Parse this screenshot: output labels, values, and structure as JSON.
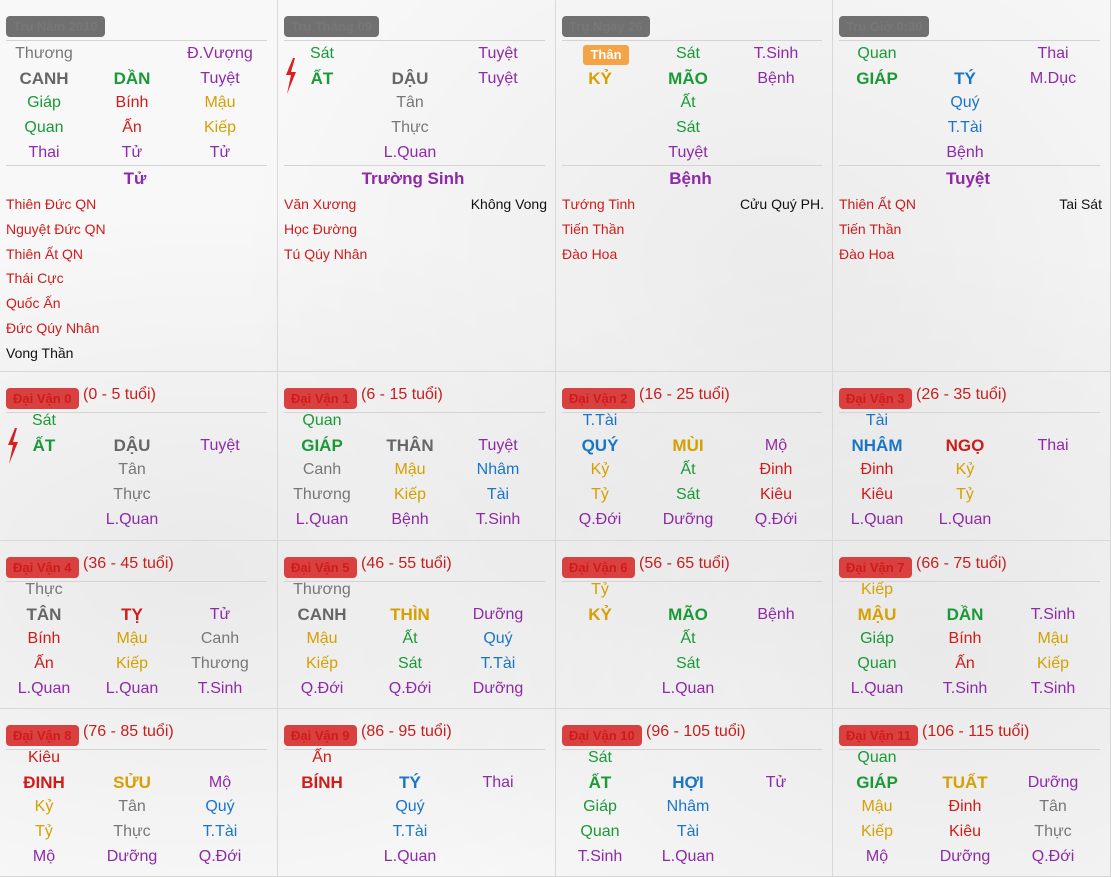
{
  "pillars": [
    {
      "title": "Trụ Năm 2010",
      "rows": [
        [
          [
            "Thương",
            "gray"
          ],
          null,
          [
            "Đ.Vượng",
            "purple"
          ]
        ],
        [
          [
            "CANH",
            "darkgray",
            1
          ],
          [
            "DẦN",
            "green",
            1
          ],
          [
            "Tuyệt",
            "purple"
          ]
        ],
        [
          [
            "Giáp",
            "green"
          ],
          [
            "Bính",
            "red"
          ],
          [
            "Mậu",
            "gold"
          ]
        ],
        [
          [
            "Quan",
            "green"
          ],
          [
            "Ấn",
            "red"
          ],
          [
            "Kiếp",
            "gold"
          ]
        ],
        [
          [
            "Thai",
            "purple"
          ],
          [
            "Tử",
            "purple"
          ],
          [
            "Tử",
            "purple"
          ]
        ]
      ],
      "center": "Tử",
      "stars_left": [
        [
          "Thiên Đức QN",
          "red"
        ],
        [
          "Nguyệt Đức QN",
          "red"
        ],
        [
          "Thiên Ất QN",
          "red"
        ],
        [
          "Thái Cực",
          "red"
        ],
        [
          "Quốc Ấn",
          "red"
        ],
        [
          "Đức Qúy Nhân",
          "red"
        ],
        [
          "Vong Thần",
          "black"
        ]
      ],
      "stars_right": []
    },
    {
      "title": "Trụ Tháng 09",
      "bolt": true,
      "rows": [
        [
          [
            "Sát",
            "green"
          ],
          null,
          [
            "Tuyệt",
            "purple"
          ]
        ],
        [
          [
            "ẤT",
            "green",
            1
          ],
          [
            "DẬU",
            "darkgray",
            1
          ],
          [
            "Tuyệt",
            "purple"
          ]
        ],
        [
          null,
          [
            "Tân",
            "gray"
          ],
          null
        ],
        [
          null,
          [
            "Thực",
            "gray"
          ],
          null
        ],
        [
          null,
          [
            "L.Quan",
            "purple"
          ],
          null
        ]
      ],
      "center": "Trường Sinh",
      "stars_left": [
        [
          "Văn Xương",
          "red"
        ],
        [
          "Học Đường",
          "red"
        ],
        [
          "Tú Qúy Nhân",
          "red"
        ]
      ],
      "stars_right": [
        [
          "Không Vong",
          "black"
        ]
      ]
    },
    {
      "title": "Trụ Ngày 26",
      "hl": "Thân",
      "rows": [
        [
          null,
          [
            "Sát",
            "green"
          ],
          [
            "T.Sinh",
            "purple"
          ]
        ],
        [
          [
            "KỶ",
            "gold",
            1
          ],
          [
            "MÃO",
            "green",
            1
          ],
          [
            "Bệnh",
            "purple"
          ]
        ],
        [
          null,
          [
            "Ất",
            "green"
          ],
          null
        ],
        [
          null,
          [
            "Sát",
            "green"
          ],
          null
        ],
        [
          null,
          [
            "Tuyệt",
            "purple"
          ],
          null
        ]
      ],
      "center": "Bệnh",
      "stars_left": [
        [
          "Tướng Tinh",
          "red"
        ],
        [
          "Tiến Thần",
          "red"
        ],
        [
          "Đào Hoa",
          "red"
        ]
      ],
      "stars_right": [
        [
          "Cửu Quý PH.",
          "black"
        ]
      ]
    },
    {
      "title": "Trụ Giờ  0:30",
      "rows": [
        [
          [
            "Quan",
            "green"
          ],
          null,
          [
            "Thai",
            "purple"
          ]
        ],
        [
          [
            "GIÁP",
            "green",
            1
          ],
          [
            "TÝ",
            "blue",
            1
          ],
          [
            "M.Dục",
            "purple"
          ]
        ],
        [
          null,
          [
            "Quý",
            "blue"
          ],
          null
        ],
        [
          null,
          [
            "T.Tài",
            "blue"
          ],
          null
        ],
        [
          null,
          [
            "Bệnh",
            "purple"
          ],
          null
        ]
      ],
      "center": "Tuyệt",
      "stars_left": [
        [
          "Thiên Ất QN",
          "red"
        ],
        [
          "Tiến Thần",
          "red"
        ],
        [
          "Đào Hoa",
          "red"
        ]
      ],
      "stars_right": [
        [
          "Tai Sát",
          "black"
        ]
      ]
    }
  ],
  "dai_van": [
    {
      "title": "Đại Vận 0",
      "age": "(0 - 5 tuổi)",
      "bolt": true,
      "rows": [
        [
          [
            "Sát",
            "green"
          ],
          null,
          null
        ],
        [
          [
            "ẤT",
            "green",
            1
          ],
          [
            "DẬU",
            "darkgray",
            1
          ],
          [
            "Tuyệt",
            "purple"
          ]
        ],
        [
          null,
          [
            "Tân",
            "gray"
          ],
          null
        ],
        [
          null,
          [
            "Thực",
            "gray"
          ],
          null
        ],
        [
          null,
          [
            "L.Quan",
            "purple"
          ],
          null
        ]
      ]
    },
    {
      "title": "Đại Vận 1",
      "age": "(6 - 15 tuổi)",
      "rows": [
        [
          [
            "Quan",
            "green"
          ],
          null,
          null
        ],
        [
          [
            "GIÁP",
            "green",
            1
          ],
          [
            "THÂN",
            "darkgray",
            1
          ],
          [
            "Tuyệt",
            "purple"
          ]
        ],
        [
          [
            "Canh",
            "gray"
          ],
          [
            "Mậu",
            "gold"
          ],
          [
            "Nhâm",
            "blue"
          ]
        ],
        [
          [
            "Thương",
            "gray"
          ],
          [
            "Kiếp",
            "gold"
          ],
          [
            "Tài",
            "blue"
          ]
        ],
        [
          [
            "L.Quan",
            "purple"
          ],
          [
            "Bệnh",
            "purple"
          ],
          [
            "T.Sinh",
            "purple"
          ]
        ]
      ]
    },
    {
      "title": "Đại Vận 2",
      "age": "(16 - 25 tuổi)",
      "rows": [
        [
          [
            "T.Tài",
            "blue"
          ],
          null,
          null
        ],
        [
          [
            "QUÝ",
            "blue",
            1
          ],
          [
            "MÙI",
            "gold",
            1
          ],
          [
            "Mộ",
            "purple"
          ]
        ],
        [
          [
            "Kỷ",
            "gold"
          ],
          [
            "Ất",
            "green"
          ],
          [
            "Đinh",
            "red"
          ]
        ],
        [
          [
            "Tỷ",
            "gold"
          ],
          [
            "Sát",
            "green"
          ],
          [
            "Kiêu",
            "red"
          ]
        ],
        [
          [
            "Q.Đới",
            "purple"
          ],
          [
            "Dưỡng",
            "purple"
          ],
          [
            "Q.Đới",
            "purple"
          ]
        ]
      ]
    },
    {
      "title": "Đại Vận 3",
      "age": "(26 - 35 tuổi)",
      "rows": [
        [
          [
            "Tài",
            "blue"
          ],
          null,
          null
        ],
        [
          [
            "NHÂM",
            "blue",
            1
          ],
          [
            "NGỌ",
            "red",
            1
          ],
          [
            "Thai",
            "purple"
          ]
        ],
        [
          [
            "Đinh",
            "red"
          ],
          [
            "Kỷ",
            "gold"
          ],
          null
        ],
        [
          [
            "Kiêu",
            "red"
          ],
          [
            "Tỷ",
            "gold"
          ],
          null
        ],
        [
          [
            "L.Quan",
            "purple"
          ],
          [
            "L.Quan",
            "purple"
          ],
          null
        ]
      ]
    },
    {
      "title": "Đại Vận 4",
      "age": "(36 - 45 tuổi)",
      "rows": [
        [
          [
            "Thực",
            "gray"
          ],
          null,
          null
        ],
        [
          [
            "TÂN",
            "darkgray",
            1
          ],
          [
            "TỴ",
            "red",
            1
          ],
          [
            "Tử",
            "purple"
          ]
        ],
        [
          [
            "Bính",
            "red"
          ],
          [
            "Mậu",
            "gold"
          ],
          [
            "Canh",
            "gray"
          ]
        ],
        [
          [
            "Ấn",
            "red"
          ],
          [
            "Kiếp",
            "gold"
          ],
          [
            "Thương",
            "gray"
          ]
        ],
        [
          [
            "L.Quan",
            "purple"
          ],
          [
            "L.Quan",
            "purple"
          ],
          [
            "T.Sinh",
            "purple"
          ]
        ]
      ]
    },
    {
      "title": "Đại Vận 5",
      "age": "(46 - 55 tuổi)",
      "rows": [
        [
          [
            "Thương",
            "gray"
          ],
          null,
          null
        ],
        [
          [
            "CANH",
            "darkgray",
            1
          ],
          [
            "THÌN",
            "gold",
            1
          ],
          [
            "Dưỡng",
            "purple"
          ]
        ],
        [
          [
            "Mậu",
            "gold"
          ],
          [
            "Ất",
            "green"
          ],
          [
            "Quý",
            "blue"
          ]
        ],
        [
          [
            "Kiếp",
            "gold"
          ],
          [
            "Sát",
            "green"
          ],
          [
            "T.Tài",
            "blue"
          ]
        ],
        [
          [
            "Q.Đới",
            "purple"
          ],
          [
            "Q.Đới",
            "purple"
          ],
          [
            "Dưỡng",
            "purple"
          ]
        ]
      ]
    },
    {
      "title": "Đại Vận 6",
      "age": "(56 - 65 tuổi)",
      "rows": [
        [
          [
            "Tỷ",
            "gold"
          ],
          null,
          null
        ],
        [
          [
            "KỶ",
            "gold",
            1
          ],
          [
            "MÃO",
            "green",
            1
          ],
          [
            "Bệnh",
            "purple"
          ]
        ],
        [
          null,
          [
            "Ất",
            "green"
          ],
          null
        ],
        [
          null,
          [
            "Sát",
            "green"
          ],
          null
        ],
        [
          null,
          [
            "L.Quan",
            "purple"
          ],
          null
        ]
      ]
    },
    {
      "title": "Đại Vận 7",
      "age": "(66 - 75 tuổi)",
      "rows": [
        [
          [
            "Kiếp",
            "gold"
          ],
          null,
          null
        ],
        [
          [
            "MẬU",
            "gold",
            1
          ],
          [
            "DẦN",
            "green",
            1
          ],
          [
            "T.Sinh",
            "purple"
          ]
        ],
        [
          [
            "Giáp",
            "green"
          ],
          [
            "Bính",
            "red"
          ],
          [
            "Mậu",
            "gold"
          ]
        ],
        [
          [
            "Quan",
            "green"
          ],
          [
            "Ấn",
            "red"
          ],
          [
            "Kiếp",
            "gold"
          ]
        ],
        [
          [
            "L.Quan",
            "purple"
          ],
          [
            "T.Sinh",
            "purple"
          ],
          [
            "T.Sinh",
            "purple"
          ]
        ]
      ]
    },
    {
      "title": "Đại Vận 8",
      "age": "(76 - 85 tuổi)",
      "rows": [
        [
          [
            "Kiêu",
            "red"
          ],
          null,
          null
        ],
        [
          [
            "ĐINH",
            "red",
            1
          ],
          [
            "SỬU",
            "gold",
            1
          ],
          [
            "Mộ",
            "purple"
          ]
        ],
        [
          [
            "Kỷ",
            "gold"
          ],
          [
            "Tân",
            "gray"
          ],
          [
            "Quý",
            "blue"
          ]
        ],
        [
          [
            "Tỷ",
            "gold"
          ],
          [
            "Thực",
            "gray"
          ],
          [
            "T.Tài",
            "blue"
          ]
        ],
        [
          [
            "Mộ",
            "purple"
          ],
          [
            "Dưỡng",
            "purple"
          ],
          [
            "Q.Đới",
            "purple"
          ]
        ]
      ]
    },
    {
      "title": "Đại Vận 9",
      "age": "(86 - 95 tuổi)",
      "rows": [
        [
          [
            "Ấn",
            "red"
          ],
          null,
          null
        ],
        [
          [
            "BÍNH",
            "red",
            1
          ],
          [
            "TÝ",
            "blue",
            1
          ],
          [
            "Thai",
            "purple"
          ]
        ],
        [
          null,
          [
            "Quý",
            "blue"
          ],
          null
        ],
        [
          null,
          [
            "T.Tài",
            "blue"
          ],
          null
        ],
        [
          null,
          [
            "L.Quan",
            "purple"
          ],
          null
        ]
      ]
    },
    {
      "title": "Đại Vận 10",
      "age": "(96 - 105 tuổi)",
      "rows": [
        [
          [
            "Sát",
            "green"
          ],
          null,
          null
        ],
        [
          [
            "ẤT",
            "green",
            1
          ],
          [
            "HỢI",
            "blue",
            1
          ],
          [
            "Tử",
            "purple"
          ]
        ],
        [
          [
            "Giáp",
            "green"
          ],
          [
            "Nhâm",
            "blue"
          ],
          null
        ],
        [
          [
            "Quan",
            "green"
          ],
          [
            "Tài",
            "blue"
          ],
          null
        ],
        [
          [
            "T.Sinh",
            "purple"
          ],
          [
            "L.Quan",
            "purple"
          ],
          null
        ]
      ]
    },
    {
      "title": "Đại Vận 11",
      "age": "(106 - 115 tuổi)",
      "rows": [
        [
          [
            "Quan",
            "green"
          ],
          null,
          null
        ],
        [
          [
            "GIÁP",
            "green",
            1
          ],
          [
            "TUẤT",
            "gold",
            1
          ],
          [
            "Dưỡng",
            "purple"
          ]
        ],
        [
          [
            "Mậu",
            "gold"
          ],
          [
            "Đinh",
            "red"
          ],
          [
            "Tân",
            "gray"
          ]
        ],
        [
          [
            "Kiếp",
            "gold"
          ],
          [
            "Kiêu",
            "red"
          ],
          [
            "Thực",
            "gray"
          ]
        ],
        [
          [
            "Mộ",
            "purple"
          ],
          [
            "Dưỡng",
            "purple"
          ],
          [
            "Q.Đới",
            "purple"
          ]
        ]
      ]
    }
  ]
}
